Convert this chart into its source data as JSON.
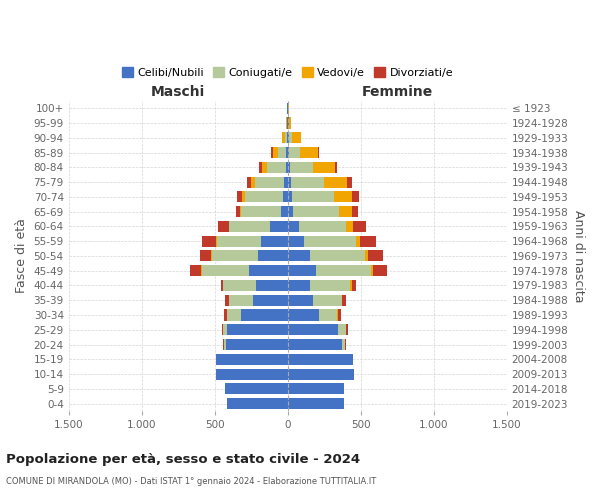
{
  "age_groups": [
    "100+",
    "95-99",
    "90-94",
    "85-89",
    "80-84",
    "75-79",
    "70-74",
    "65-69",
    "60-64",
    "55-59",
    "50-54",
    "45-49",
    "40-44",
    "35-39",
    "30-34",
    "25-29",
    "20-24",
    "15-19",
    "10-14",
    "5-9",
    "0-4"
  ],
  "birth_years": [
    "≤ 1923",
    "1924-1928",
    "1929-1933",
    "1934-1938",
    "1939-1943",
    "1944-1948",
    "1949-1953",
    "1954-1958",
    "1959-1963",
    "1964-1968",
    "1969-1973",
    "1974-1978",
    "1979-1983",
    "1984-1988",
    "1989-1993",
    "1994-1998",
    "1999-2003",
    "2004-2008",
    "2009-2013",
    "2014-2018",
    "2019-2023"
  ],
  "colors": {
    "celibe": "#4472c4",
    "coniugato": "#b5c99a",
    "vedovo": "#f0a500",
    "divorziato": "#c0392b"
  },
  "males": {
    "celibe": [
      2,
      4,
      6,
      10,
      15,
      25,
      35,
      45,
      120,
      185,
      205,
      265,
      215,
      235,
      320,
      415,
      425,
      490,
      490,
      430,
      415
    ],
    "coniugato": [
      1,
      4,
      12,
      55,
      125,
      200,
      260,
      275,
      280,
      300,
      315,
      325,
      225,
      165,
      95,
      25,
      8,
      2,
      0,
      0,
      0
    ],
    "vedovo": [
      1,
      4,
      18,
      38,
      38,
      28,
      18,
      8,
      4,
      4,
      4,
      4,
      2,
      2,
      2,
      2,
      4,
      0,
      0,
      0,
      0
    ],
    "divorziato": [
      0,
      0,
      4,
      8,
      18,
      25,
      35,
      25,
      75,
      95,
      75,
      75,
      18,
      25,
      18,
      8,
      4,
      0,
      0,
      0,
      0
    ]
  },
  "females": {
    "nubile": [
      2,
      6,
      8,
      12,
      18,
      22,
      30,
      35,
      75,
      115,
      155,
      195,
      155,
      175,
      215,
      345,
      375,
      445,
      455,
      385,
      385
    ],
    "coniugata": [
      2,
      6,
      22,
      75,
      155,
      225,
      285,
      315,
      325,
      355,
      375,
      375,
      275,
      195,
      125,
      55,
      18,
      4,
      2,
      0,
      0
    ],
    "vedova": [
      3,
      14,
      58,
      118,
      148,
      158,
      128,
      88,
      48,
      28,
      18,
      14,
      8,
      4,
      4,
      2,
      2,
      0,
      0,
      0,
      0
    ],
    "divorziata": [
      0,
      0,
      4,
      8,
      18,
      35,
      45,
      45,
      85,
      105,
      105,
      95,
      28,
      28,
      18,
      8,
      4,
      0,
      0,
      0,
      0
    ]
  },
  "xlim": 1500,
  "xticks": [
    -1500,
    -1000,
    -500,
    0,
    500,
    1000,
    1500
  ],
  "xticklabels": [
    "1.500",
    "1.000",
    "500",
    "0",
    "500",
    "1.000",
    "1.500"
  ],
  "title": "Popolazione per età, sesso e stato civile - 2024",
  "subtitle": "COMUNE DI MIRANDOLA (MO) - Dati ISTAT 1° gennaio 2024 - Elaborazione TUTTITALIA.IT",
  "ylabel_left": "Fasce di età",
  "ylabel_right": "Anni di nascita",
  "label_maschi": "Maschi",
  "label_femmine": "Femmine",
  "legend_labels": [
    "Celibi/Nubili",
    "Coniugati/e",
    "Vedovi/e",
    "Divorziati/e"
  ],
  "background_color": "#ffffff",
  "grid_color": "#cccccc"
}
